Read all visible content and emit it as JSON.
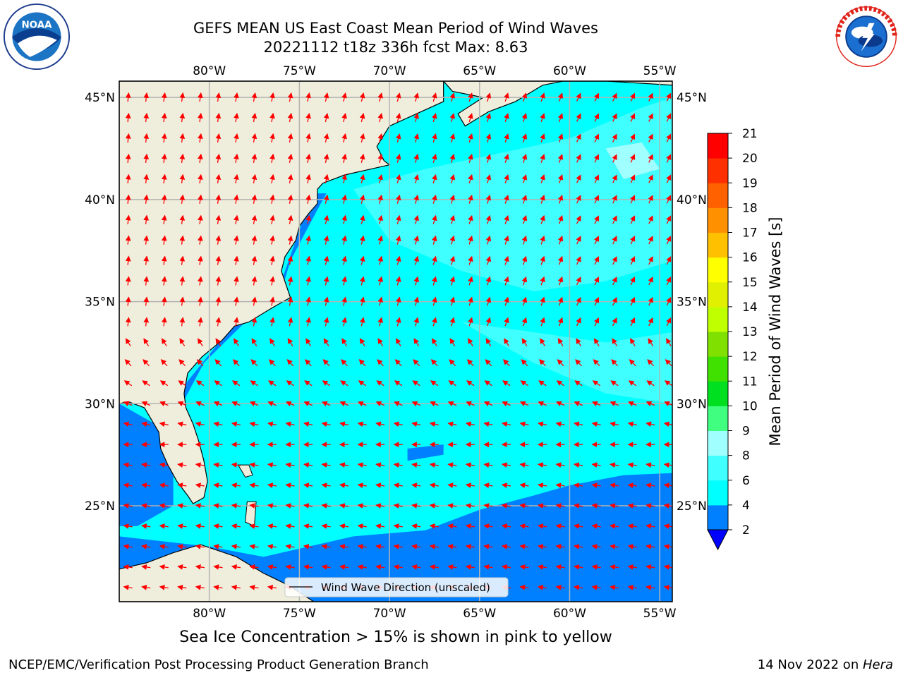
{
  "header": {
    "title_line1": "GEFS MEAN US East Coast Mean Period of Wind Waves",
    "title_line2": "20221112 t18z 336h fcst   Max: 8.63"
  },
  "logos": {
    "left": {
      "icon": "noaa-logo-icon",
      "text": "NOAA",
      "ring_text": "NATIONAL OCEANIC AND ATMOSPHERIC ADMINISTRATION · U.S. DEPARTMENT OF COMMERCE"
    },
    "right": {
      "icon": "nws-logo-icon",
      "ring_text": "NATIONAL WEATHER SERVICE"
    }
  },
  "map": {
    "lon_labels": [
      "80°W",
      "75°W",
      "70°W",
      "65°W",
      "60°W",
      "55°W"
    ],
    "lon_values": [
      -80,
      -75,
      -70,
      -65,
      -60,
      -55
    ],
    "lat_labels": [
      "45°N",
      "40°N",
      "35°N",
      "30°N",
      "25°N"
    ],
    "lat_values": [
      45,
      40,
      35,
      30,
      25
    ],
    "lon_range": [
      -85,
      -54.3
    ],
    "lat_range": [
      20.3,
      45.8
    ],
    "land_color": "#efeddc",
    "grid_color": "#b3b3b3",
    "arrow_color": "#ff0000",
    "legend_label": "Wind Wave Direction (unscaled)"
  },
  "colorbar": {
    "label": "Mean Period of Wind Waves [s]",
    "ticks": [
      "2",
      "4",
      "6",
      "8",
      "9",
      "10",
      "11",
      "12",
      "13",
      "14",
      "15",
      "16",
      "17",
      "18",
      "19",
      "20",
      "21"
    ],
    "bins": [
      {
        "from": 2,
        "to": 4,
        "color": "#0080ff"
      },
      {
        "from": 4,
        "to": 6,
        "color": "#00ffff"
      },
      {
        "from": 6,
        "to": 8,
        "color": "#40ffff"
      },
      {
        "from": 8,
        "to": 9,
        "color": "#a0ffff"
      },
      {
        "from": 9,
        "to": 10,
        "color": "#40ff80"
      },
      {
        "from": 10,
        "to": 11,
        "color": "#00e020"
      },
      {
        "from": 11,
        "to": 12,
        "color": "#40e000"
      },
      {
        "from": 12,
        "to": 13,
        "color": "#80e000"
      },
      {
        "from": 13,
        "to": 14,
        "color": "#c0ff00"
      },
      {
        "from": 14,
        "to": 15,
        "color": "#e0f000"
      },
      {
        "from": 15,
        "to": 16,
        "color": "#ffff00"
      },
      {
        "from": 16,
        "to": 17,
        "color": "#ffc000"
      },
      {
        "from": 17,
        "to": 18,
        "color": "#ff9000"
      },
      {
        "from": 18,
        "to": 19,
        "color": "#ff6000"
      },
      {
        "from": 19,
        "to": 20,
        "color": "#ff3000"
      },
      {
        "from": 20,
        "to": 21,
        "color": "#ff0000"
      }
    ],
    "under_color": "#0000ff"
  },
  "footer": {
    "ice_note": "Sea Ice Concentration > 15% is shown in pink to yellow",
    "credit": "NCEP/EMC/Verification Post Processing Product Generation Branch",
    "date_prefix": "14 Nov 2022 on ",
    "date_machine": "Hera"
  }
}
